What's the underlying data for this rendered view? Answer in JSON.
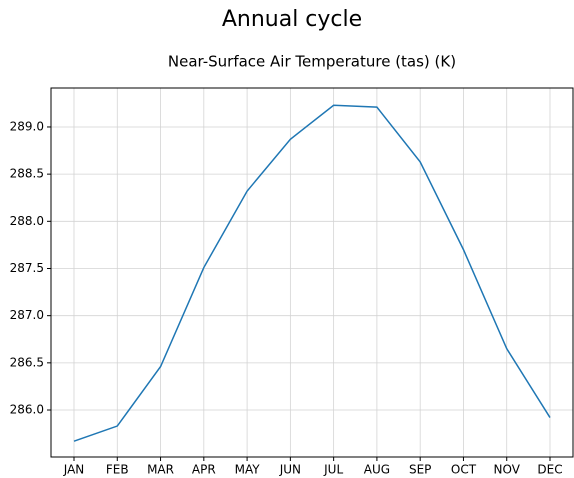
{
  "chart_data": {
    "type": "line",
    "suptitle": "Annual cycle",
    "title": "Near-Surface Air Temperature (tas) (K)",
    "categories": [
      "JAN",
      "FEB",
      "MAR",
      "APR",
      "MAY",
      "JUN",
      "JUL",
      "AUG",
      "SEP",
      "OCT",
      "NOV",
      "DEC"
    ],
    "series": [
      {
        "color": "#1f77b4",
        "values": [
          285.67,
          285.83,
          286.46,
          287.51,
          288.32,
          288.87,
          289.23,
          289.21,
          288.63,
          287.7,
          286.65,
          285.92
        ]
      }
    ],
    "ylim": [
      285.502,
      289.413
    ],
    "yticks": [
      {
        "value": 286,
        "label": "286.0"
      },
      {
        "value": 286.5,
        "label": "286.5"
      },
      {
        "value": 287,
        "label": "287.0"
      },
      {
        "value": 287.5,
        "label": "287.5"
      },
      {
        "value": 288,
        "label": "288.0"
      },
      {
        "value": 288.5,
        "label": "288.5"
      },
      {
        "value": 289,
        "label": "289.0"
      }
    ],
    "grid": true
  }
}
